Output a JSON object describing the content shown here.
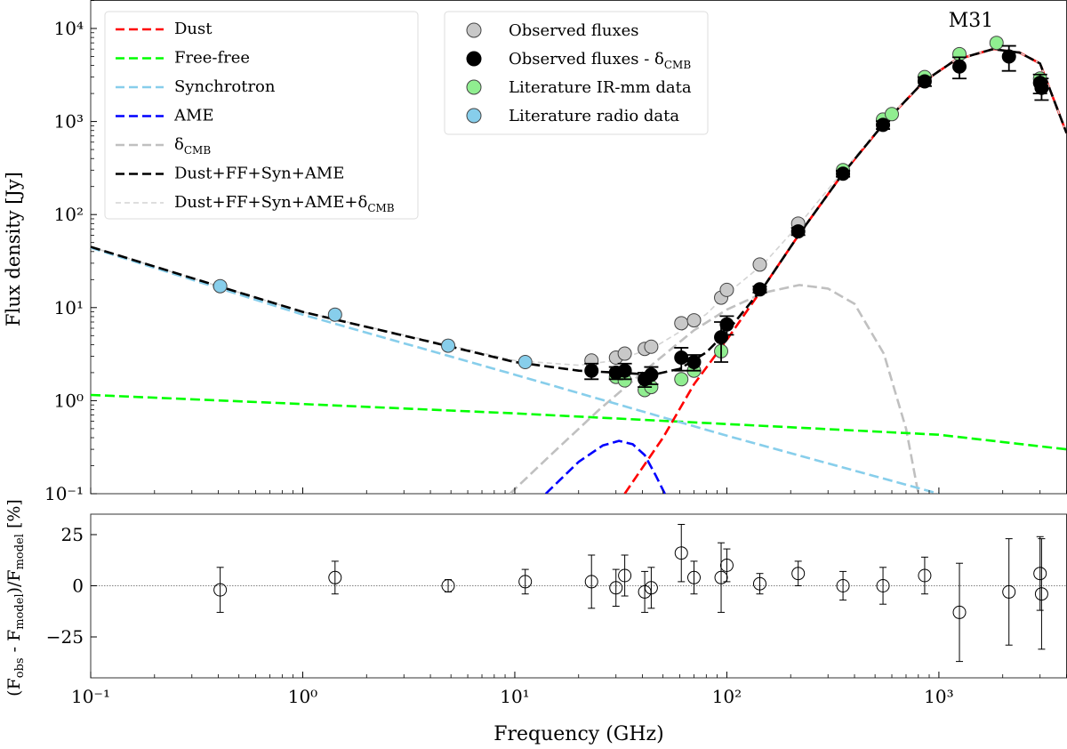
{
  "chart_data": {
    "type": "scatter",
    "title": "M31",
    "xlabel": "Frequency (GHz)",
    "xscale": "log",
    "xlim": [
      0.1,
      4000
    ],
    "x_ticks": [
      {
        "value": 0.1,
        "label": "10⁻¹"
      },
      {
        "value": 1,
        "label": "10⁰"
      },
      {
        "value": 10,
        "label": "10¹"
      },
      {
        "value": 100,
        "label": "10²"
      },
      {
        "value": 1000,
        "label": "10³"
      }
    ],
    "top_panel": {
      "ylabel": "Flux density [Jy]",
      "yscale": "log",
      "ylim": [
        0.1,
        20000
      ],
      "y_ticks": [
        {
          "value": 0.1,
          "label": "10⁻¹"
        },
        {
          "value": 1,
          "label": "10⁰"
        },
        {
          "value": 10,
          "label": "10¹"
        },
        {
          "value": 100,
          "label": "10²"
        },
        {
          "value": 1000,
          "label": "10³"
        },
        {
          "value": 10000,
          "label": "10⁴"
        }
      ],
      "legend_left_position": "upper-left",
      "legend_right_position": "upper-center",
      "model_series": [
        {
          "name": "Dust",
          "color": "#ff0000",
          "style": "dashed",
          "x": [
            33,
            40,
            50,
            70,
            100,
            150,
            220,
            350,
            550,
            850,
            1200,
            1800,
            2400,
            3000,
            4000
          ],
          "y": [
            0.1,
            0.19,
            0.4,
            1.5,
            4.5,
            17,
            62,
            270,
            950,
            2700,
            4600,
            6000,
            5500,
            4200,
            750
          ]
        },
        {
          "name": "Free-free",
          "color": "#00ff00",
          "style": "dashed",
          "x": [
            0.1,
            1,
            10,
            100,
            1000,
            4000
          ],
          "y": [
            1.15,
            0.92,
            0.73,
            0.56,
            0.43,
            0.3
          ]
        },
        {
          "name": "Synchrotron",
          "color": "#87ceeb",
          "style": "dashed",
          "x": [
            0.1,
            1,
            10,
            100,
            1000
          ],
          "y": [
            44,
            8.4,
            1.9,
            0.42,
            0.1
          ]
        },
        {
          "name": "AME",
          "color": "#0000ff",
          "style": "dashed",
          "x": [
            14,
            20,
            26,
            31,
            36,
            41,
            46,
            51
          ],
          "y": [
            0.1,
            0.22,
            0.33,
            0.37,
            0.34,
            0.26,
            0.16,
            0.1
          ]
        },
        {
          "name": "δCMB",
          "color": "#c0c0c0",
          "style": "dashed",
          "x": [
            9.5,
            15,
            25,
            40,
            70,
            100,
            150,
            220,
            300,
            400,
            550,
            700,
            800
          ],
          "y": [
            0.1,
            0.27,
            0.8,
            2.0,
            5.7,
            9.5,
            14.5,
            17.5,
            16,
            11,
            3.2,
            0.5,
            0.1
          ]
        },
        {
          "name": "Dust+FF+Syn+AME",
          "color": "#000000",
          "style": "dashed",
          "x": [
            0.1,
            0.4,
            1,
            5,
            10,
            20,
            30,
            45,
            60,
            80,
            100,
            150,
            220,
            350,
            550,
            850,
            1200,
            1800,
            2400,
            3000,
            4000
          ],
          "y": [
            45,
            17,
            9,
            3.8,
            2.6,
            2.1,
            2.0,
            1.9,
            2.2,
            3.3,
            5.5,
            17,
            62,
            270,
            950,
            2700,
            4600,
            6000,
            5500,
            4200,
            750
          ]
        },
        {
          "name": "Dust+FF+Syn+AME+δCMB",
          "color": "#d3d3d3",
          "style": "dashed-thin",
          "x": [
            0.1,
            0.4,
            1,
            5,
            10,
            20,
            30,
            45,
            60,
            80,
            100,
            150,
            220,
            350,
            550,
            850,
            1200,
            1800,
            2400,
            3000,
            4000
          ],
          "y": [
            45,
            17,
            9,
            3.9,
            2.7,
            2.4,
            2.7,
            3.7,
            5.5,
            8.5,
            14,
            30,
            79,
            285,
            960,
            2710,
            4605,
            6000,
            5500,
            4200,
            750
          ]
        }
      ],
      "data_series": [
        {
          "name": "Observed fluxes",
          "color": "#c8c8c8",
          "x": [
            23,
            30,
            33,
            41,
            44,
            61,
            70,
            94,
            100,
            143,
            217
          ],
          "y": [
            2.7,
            2.9,
            3.2,
            3.6,
            3.8,
            6.8,
            7.3,
            12.8,
            15.5,
            29,
            80
          ]
        },
        {
          "name": "Observed fluxes - δCMB",
          "color": "#000000",
          "x": [
            23,
            30,
            33,
            41,
            44,
            61,
            70,
            94,
            100,
            143,
            217,
            353,
            545,
            857,
            1250,
            2140,
            3000,
            3050
          ],
          "y": [
            2.1,
            2.0,
            2.1,
            1.7,
            1.9,
            2.9,
            2.6,
            4.8,
            6.6,
            15.7,
            66,
            275,
            920,
            2700,
            3900,
            5000,
            2600,
            2300
          ],
          "yerr": [
            0.4,
            0.3,
            0.4,
            0.3,
            0.4,
            0.8,
            0.5,
            2.2,
            1.5,
            1.2,
            6,
            20,
            90,
            300,
            1000,
            1500,
            600,
            600
          ]
        },
        {
          "name": "Literature IR-mm data",
          "color": "#90ee90",
          "x": [
            30,
            33,
            41,
            44,
            61,
            70,
            94,
            353,
            545,
            600,
            857,
            1250,
            1870,
            3000
          ],
          "y": [
            1.8,
            1.65,
            1.3,
            1.4,
            1.7,
            2.1,
            3.4,
            300,
            1050,
            1200,
            3000,
            5300,
            7000,
            2900
          ]
        },
        {
          "name": "Literature radio data",
          "color": "#87ceeb",
          "x": [
            0.408,
            1.42,
            4.85,
            11.2
          ],
          "y": [
            17,
            8.4,
            3.9,
            2.6
          ]
        }
      ]
    },
    "bottom_panel": {
      "ylabel": "(Fobs - Fmodel)/Fmodel [%]",
      "ylim": [
        -45,
        35
      ],
      "y_ticks": [
        {
          "value": -25,
          "label": "−25"
        },
        {
          "value": 0,
          "label": "0"
        },
        {
          "value": 25,
          "label": "25"
        }
      ],
      "residuals": {
        "x": [
          0.408,
          1.42,
          4.85,
          11.2,
          23,
          30,
          33,
          41,
          44,
          61,
          70,
          94,
          100,
          143,
          217,
          353,
          545,
          857,
          1250,
          2140,
          3000,
          3050
        ],
        "y": [
          -2,
          4,
          0,
          2,
          2,
          -1,
          5,
          -3,
          -1,
          16,
          4,
          4,
          10,
          1,
          6,
          0,
          0,
          5,
          -13,
          -3,
          6,
          -4
        ],
        "yerr": [
          11,
          8,
          3,
          6,
          13,
          9,
          10,
          10,
          10,
          14,
          8,
          17,
          8,
          5,
          6,
          7,
          9,
          9,
          24,
          26,
          18,
          27
        ]
      }
    }
  }
}
